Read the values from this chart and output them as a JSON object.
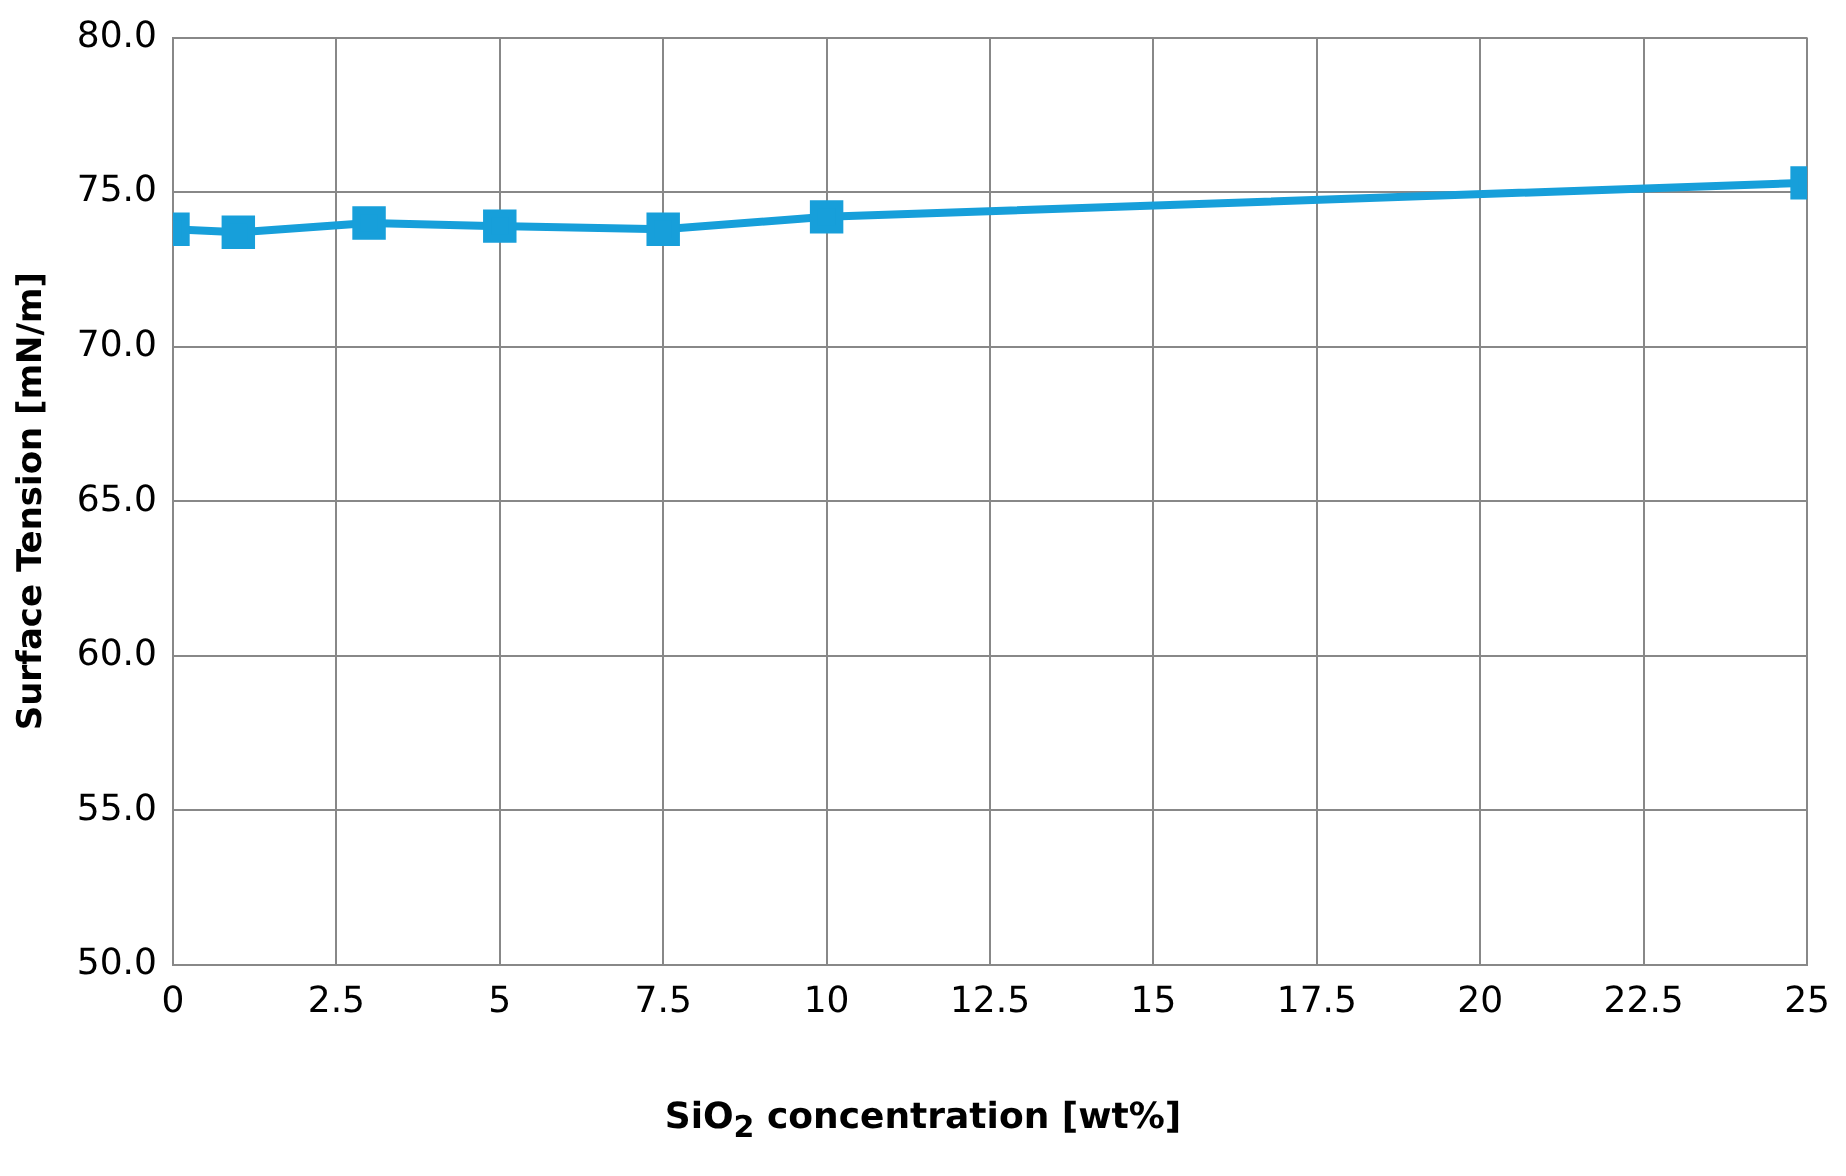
{
  "chart_data": {
    "type": "line",
    "xlabel": "SiO$_{2}$ concentration [wt%]",
    "ylabel": "Surface Tension [mN/m]",
    "x": [
      0,
      1,
      3,
      5,
      7.5,
      10,
      25
    ],
    "series": [
      {
        "color": "#179fda",
        "values": [
          73.8,
          73.7,
          74.0,
          73.9,
          73.8,
          74.2,
          75.3
        ]
      }
    ],
    "xlim": [
      0,
      25
    ],
    "xticks": [
      0,
      2.5,
      5,
      7.5,
      10,
      12.5,
      15,
      17.5,
      20,
      22.5,
      25
    ],
    "ylim": [
      50,
      80
    ],
    "yticks": [
      {
        "value": 50,
        "label": "50.0"
      },
      {
        "value": 55,
        "label": "55.0"
      },
      {
        "value": 60,
        "label": "60.0"
      },
      {
        "value": 65,
        "label": "65.0"
      },
      {
        "value": 70,
        "label": "70.0"
      },
      {
        "value": 75,
        "label": "75.0"
      },
      {
        "value": 80,
        "label": "80.0"
      }
    ],
    "grid": true,
    "legend": false,
    "marker": "square",
    "line_style": "solid"
  }
}
